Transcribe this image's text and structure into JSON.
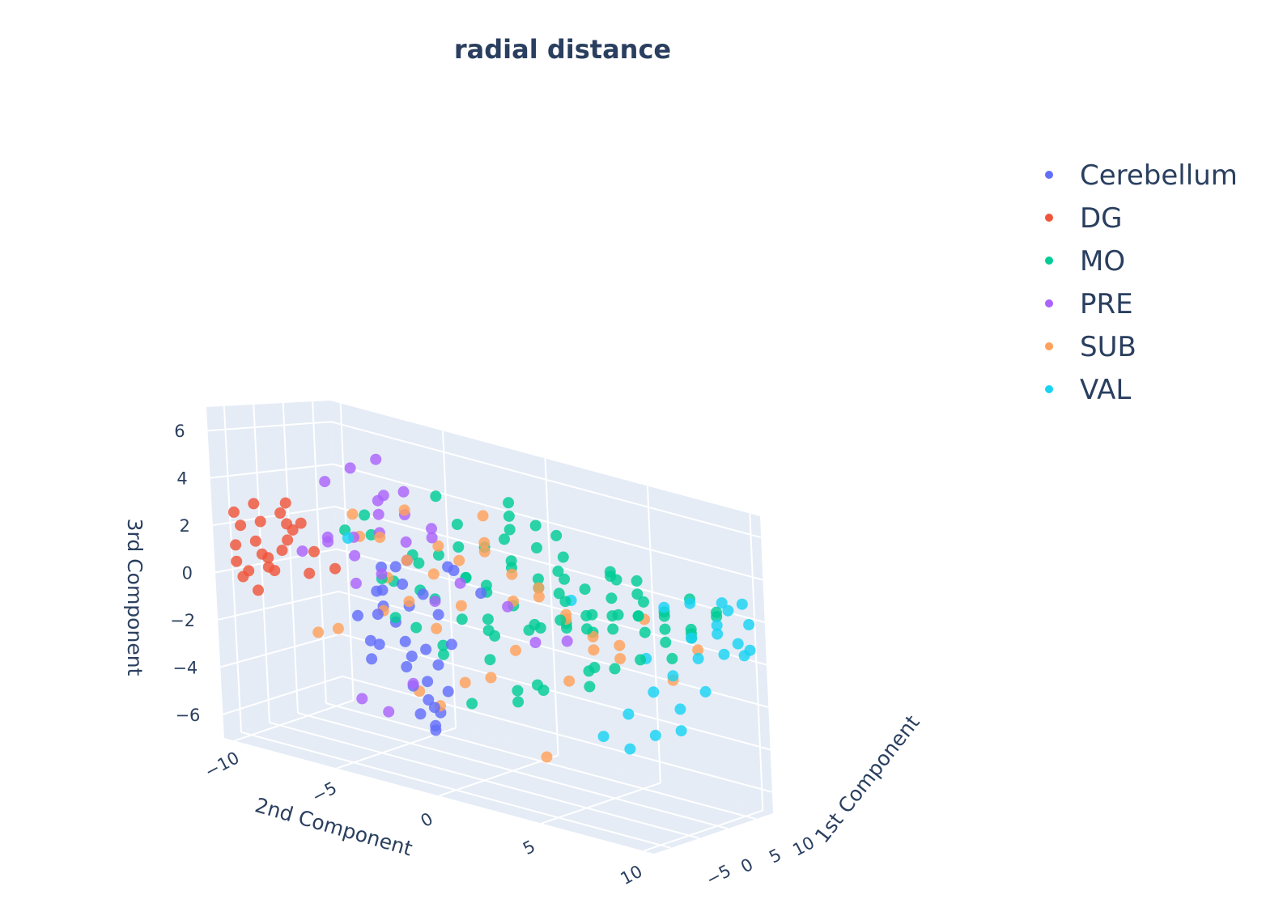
{
  "chart_data": {
    "type": "scatter",
    "title": "radial distance",
    "dimensions": 3,
    "axes": {
      "x": {
        "label": "1st Component",
        "ticks": [
          -5,
          0,
          5,
          10
        ],
        "range": [
          -8,
          13
        ]
      },
      "y": {
        "label": "2nd Component",
        "ticks": [
          -10,
          -5,
          0,
          5,
          10
        ],
        "range": [
          -10.5,
          10.5
        ]
      },
      "z": {
        "label": "3rd Component",
        "ticks": [
          -6,
          -4,
          -2,
          0,
          2,
          4,
          6
        ],
        "range": [
          -7,
          7
        ]
      }
    },
    "grid": true,
    "legend_placement": "top-right",
    "background": "#e5ecf6",
    "series": [
      {
        "name": "Cerebellum",
        "color": "#636efa",
        "x": [
          -3,
          -2,
          -1,
          -2,
          -3,
          -1,
          0,
          -2,
          -3,
          -1,
          -2,
          0,
          -1,
          -3,
          -2,
          -1,
          0,
          -2,
          -1,
          -3,
          -2,
          0,
          -1,
          -2,
          -3,
          -1,
          -2,
          -1,
          0,
          -2,
          1,
          -1,
          -2
        ],
        "y": [
          -4,
          -3,
          -5,
          -2,
          -4,
          -3,
          -2,
          -4,
          -1,
          -3,
          -2,
          -4,
          -5,
          -3,
          -2,
          -1,
          -3,
          -4,
          -2,
          -5,
          -3,
          -1,
          -2,
          -3,
          -4,
          -2,
          -1,
          -3,
          -2,
          -4,
          0,
          -1,
          -2
        ],
        "z": [
          0.5,
          -1.5,
          -2.8,
          0.8,
          -0.5,
          -3.5,
          -4.5,
          1.5,
          0.2,
          -2.2,
          -3.8,
          -1.0,
          -2.0,
          1.8,
          -3.0,
          -1.2,
          -4.8,
          0.5,
          -5.2,
          -0.8,
          -2.6,
          2.0,
          -4.2,
          1.0,
          -1.8,
          -5.0,
          -3.2,
          0.0,
          -2.4,
          -0.2,
          1.2,
          2.2,
          -1.6
        ]
      },
      {
        "name": "DG",
        "color": "#ef553b",
        "x": [
          -6,
          -5,
          -4,
          -6,
          -5,
          -3,
          -4,
          -5,
          -6,
          -4,
          -3,
          -5,
          -6,
          -4,
          -5,
          -3,
          -4,
          -6,
          -5,
          -4,
          -3,
          -5,
          -4,
          -6
        ],
        "y": [
          -10,
          -9,
          -8,
          -9,
          -10,
          -7,
          -9,
          -8,
          -10,
          -8,
          -9,
          -7,
          -9,
          -10,
          -8,
          -8,
          -7,
          -9,
          -9,
          -8,
          -6,
          -10,
          -9,
          -10
        ],
        "z": [
          0.5,
          1.0,
          2.5,
          -0.5,
          2.0,
          1.5,
          0.8,
          3.0,
          1.2,
          1.8,
          0.2,
          2.8,
          3.2,
          0.0,
          1.4,
          2.2,
          0.6,
          1.6,
          2.4,
          3.4,
          1.0,
          -0.2,
          0.4,
          2.6
        ]
      },
      {
        "name": "MO",
        "color": "#00cc96",
        "x": [
          -2,
          -1,
          0,
          1,
          2,
          3,
          0,
          -1,
          2,
          4,
          5,
          1,
          3,
          6,
          7,
          2,
          4,
          8,
          5,
          3,
          1,
          6,
          9,
          0,
          2,
          4,
          7,
          8,
          3,
          5,
          1,
          -1,
          6,
          2,
          4,
          9,
          10,
          3,
          5,
          7,
          0,
          2,
          6,
          8,
          4,
          1,
          3,
          5,
          7,
          9,
          2,
          4,
          6,
          1,
          3,
          8,
          5,
          7,
          2,
          0,
          4,
          6,
          3,
          5,
          1,
          7,
          9,
          2,
          4,
          6,
          8,
          3,
          5,
          10,
          1,
          4,
          6,
          2,
          8,
          3,
          5,
          7,
          0,
          2,
          4,
          6,
          9,
          1,
          3,
          5
        ],
        "y": [
          -4,
          -3,
          -2,
          -1,
          0,
          1,
          -3,
          -5,
          2,
          3,
          4,
          -2,
          1,
          5,
          6,
          0,
          3,
          7,
          4,
          2,
          -1,
          5,
          8,
          -4,
          1,
          3,
          6,
          7,
          2,
          4,
          -2,
          -6,
          5,
          0,
          3,
          8,
          9,
          1,
          4,
          6,
          -3,
          0,
          5,
          7,
          2,
          -1,
          1,
          4,
          6,
          8,
          0,
          2,
          5,
          -2,
          1,
          7,
          3,
          6,
          -1,
          -4,
          2,
          4,
          1,
          3,
          -3,
          5,
          7,
          0,
          2,
          4,
          6,
          1,
          3,
          9,
          -2,
          2,
          5,
          -1,
          6,
          0,
          3,
          5,
          -5,
          -1,
          2,
          4,
          8,
          -3,
          1,
          3
        ],
        "z": [
          1.0,
          2.0,
          0.5,
          3.0,
          1.5,
          2.5,
          -1.0,
          3.5,
          0.0,
          1.8,
          2.2,
          -2.0,
          0.8,
          3.2,
          1.4,
          -0.5,
          2.8,
          1.0,
          -1.5,
          0.2,
          4.0,
          2.0,
          1.2,
          -0.8,
          3.8,
          0.6,
          2.4,
          1.6,
          -2.5,
          0.4,
          5.0,
          2.6,
          -1.2,
          1.2,
          4.4,
          0.8,
          2.0,
          -3.0,
          1.0,
          3.0,
          2.2,
          -1.8,
          0.6,
          1.8,
          3.6,
          -0.2,
          2.8,
          -2.2,
          1.4,
          2.6,
          0.0,
          4.6,
          1.2,
          2.4,
          -3.5,
          0.4,
          3.4,
          -0.6,
          1.6,
          0.8,
          2.2,
          -1.4,
          5.4,
          0.2,
          1.8,
          2.8,
          -0.4,
          3.2,
          -2.8,
          1.0,
          0.6,
          4.2,
          1.4,
          2.2,
          -1.6,
          0.0,
          3.0,
          1.6,
          2.0,
          -0.8,
          0.4,
          1.2,
          2.6,
          -4.0,
          1.8,
          0.2,
          1.0,
          0.6,
          4.8,
          2.4
        ]
      },
      {
        "name": "PRE",
        "color": "#ab63fa",
        "x": [
          -4,
          -3,
          -2,
          -1,
          0,
          -3,
          -2,
          -1,
          -4,
          -2,
          -3,
          -1,
          0,
          -2,
          -3,
          -1,
          -2,
          1,
          2,
          -3,
          -2,
          0,
          -1,
          -4,
          3,
          5,
          -5,
          -1
        ],
        "y": [
          -6,
          -5,
          -4,
          -3,
          -2,
          -5,
          -4,
          -3,
          -6,
          -4,
          -5,
          -3,
          -2,
          -4,
          -5,
          -3,
          -4,
          -1,
          1,
          -5,
          -4,
          -2,
          -3,
          -6,
          2,
          3,
          -7,
          -4
        ],
        "z": [
          4.8,
          5.6,
          6.2,
          4.0,
          3.2,
          2.6,
          3.8,
          5.0,
          2.2,
          4.4,
          1.8,
          2.8,
          3.6,
          1.2,
          0.6,
          2.0,
          3.0,
          1.4,
          0.8,
          -4.4,
          -4.8,
          0.4,
          -3.4,
          2.4,
          -0.6,
          -0.4,
          1.6,
          4.6
        ]
      },
      {
        "name": "SUB",
        "color": "#ffa15a",
        "x": [
          -3,
          -2,
          -1,
          0,
          1,
          -2,
          -1,
          2,
          3,
          -3,
          0,
          1,
          4,
          5,
          -1,
          2,
          6,
          3,
          -2,
          0,
          4,
          7,
          1,
          5,
          8,
          2,
          6,
          3,
          9,
          -1,
          4,
          0,
          5,
          7,
          2,
          10,
          -3,
          1
        ],
        "y": [
          -5,
          -4,
          -3,
          -2,
          -1,
          -4,
          -3,
          0,
          1,
          -6,
          -2,
          -1,
          2,
          3,
          -3,
          0,
          4,
          1,
          -5,
          -2,
          2,
          5,
          -1,
          3,
          6,
          0,
          4,
          1,
          7,
          -4,
          2,
          -3,
          3,
          5,
          0,
          8,
          -7,
          -2
        ],
        "z": [
          3.6,
          2.8,
          4.2,
          1.6,
          0.4,
          -0.4,
          2.0,
          3.0,
          1.0,
          -1.6,
          -0.8,
          2.4,
          1.4,
          -2.2,
          0.2,
          4.6,
          0.0,
          -1.2,
          2.6,
          -4.2,
          1.8,
          -0.2,
          -3.0,
          0.8,
          1.2,
          -2.6,
          -0.6,
          2.2,
          -1.4,
          1.0,
          -5.8,
          -3.8,
          0.6,
          -0.8,
          3.4,
          0.2,
          -2.0,
          2.8
        ]
      },
      {
        "name": "VAL",
        "color": "#19d3f3",
        "x": [
          8,
          9,
          10,
          11,
          9,
          10,
          11,
          12,
          8,
          9,
          10,
          11,
          12,
          9,
          10,
          11,
          8,
          9,
          10,
          7,
          8,
          11,
          -4,
          6,
          10,
          12
        ],
        "y": [
          7,
          8,
          9,
          10,
          8,
          9,
          10,
          10,
          6,
          7,
          8,
          9,
          10,
          6,
          7,
          8,
          5,
          6,
          7,
          4,
          5,
          9,
          -5,
          3,
          10,
          9
        ],
        "z": [
          2.0,
          2.4,
          1.6,
          2.8,
          0.8,
          1.2,
          0.4,
          1.8,
          -0.6,
          -1.2,
          -0.2,
          0.2,
          0.6,
          -2.2,
          -2.8,
          -1.8,
          -3.4,
          -4.2,
          -3.8,
          -4.6,
          -5.0,
          2.6,
          2.6,
          1.4,
          1.0,
          2.2
        ]
      }
    ]
  }
}
